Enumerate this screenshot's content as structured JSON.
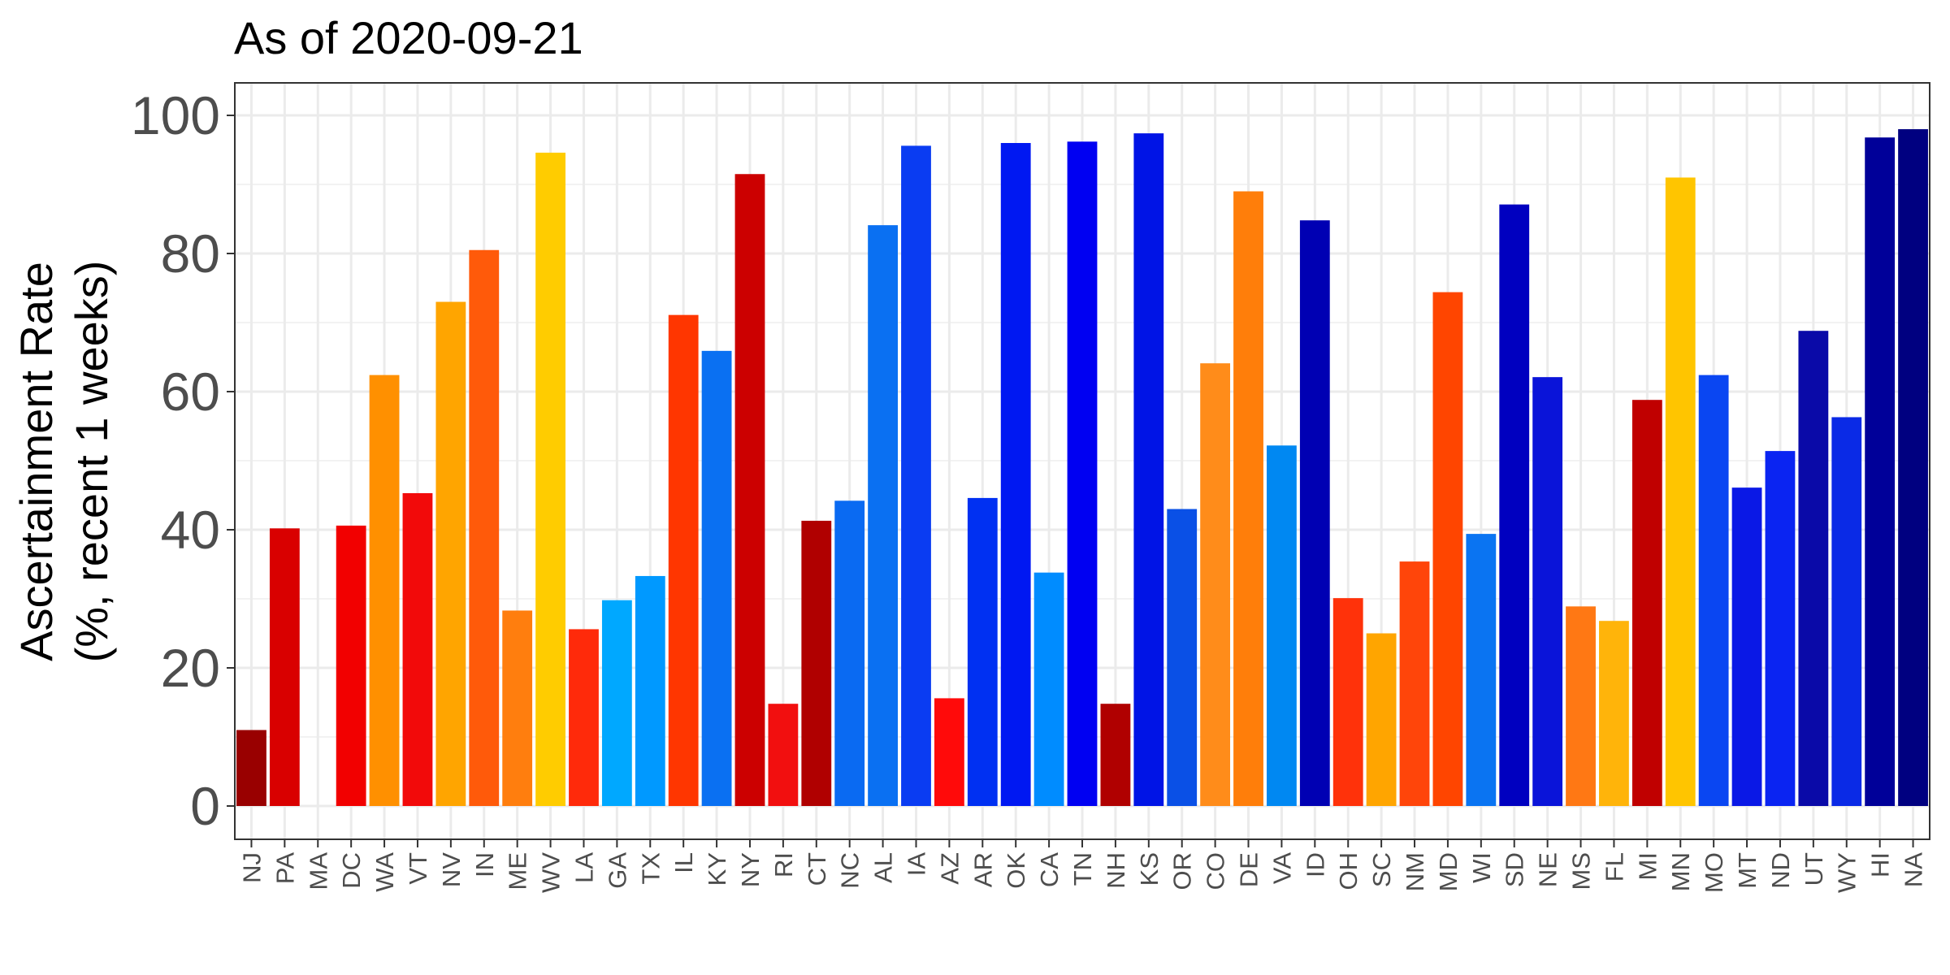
{
  "chart_data": {
    "type": "bar",
    "title": "As of 2020-09-21",
    "ylabel_line1": "Ascertainment Rate",
    "ylabel_line2": "(%, recent 1 weeks)",
    "xlabel": "",
    "ylim": [
      -5,
      104
    ],
    "yticks": [
      0,
      20,
      40,
      60,
      80,
      100
    ],
    "grid": true,
    "categories": [
      "NJ",
      "PA",
      "MA",
      "DC",
      "WA",
      "VT",
      "NV",
      "IN",
      "ME",
      "WV",
      "LA",
      "GA",
      "TX",
      "IL",
      "KY",
      "NY",
      "RI",
      "CT",
      "NC",
      "AL",
      "IA",
      "AZ",
      "AR",
      "OK",
      "CA",
      "TN",
      "NH",
      "KS",
      "OR",
      "CO",
      "DE",
      "VA",
      "ID",
      "OH",
      "SC",
      "NM",
      "MD",
      "WI",
      "SD",
      "NE",
      "MS",
      "FL",
      "MI",
      "MN",
      "MO",
      "MT",
      "ND",
      "UT",
      "WY",
      "HI",
      "NA"
    ],
    "values": [
      11.0,
      40.2,
      0,
      40.6,
      62.4,
      45.3,
      73.0,
      80.5,
      28.3,
      94.6,
      25.6,
      29.8,
      33.3,
      71.1,
      65.9,
      91.5,
      14.8,
      41.3,
      44.2,
      84.1,
      95.6,
      15.6,
      44.6,
      96.0,
      33.8,
      96.2,
      14.8,
      97.4,
      43.0,
      64.1,
      89.0,
      52.2,
      84.8,
      30.1,
      25.0,
      35.4,
      74.4,
      39.4,
      87.1,
      62.1,
      28.9,
      26.8,
      58.8,
      91.0,
      62.4,
      46.1,
      51.4,
      68.8,
      56.3,
      96.8,
      98.0
    ],
    "colors": [
      "#990000",
      "#D90000",
      "#D90000",
      "#F20000",
      "#FF9000",
      "#F20A0A",
      "#FFA500",
      "#FF5A0A",
      "#FF7E0E",
      "#FFCC00",
      "#FF2A0A",
      "#00A8FF",
      "#0099FF",
      "#FF3600",
      "#0A70F2",
      "#CC0000",
      "#F20F0F",
      "#B00000",
      "#0A6AF2",
      "#0A70F2",
      "#0A3CF2",
      "#FF0A0A",
      "#0030F2",
      "#0018F2",
      "#008CFF",
      "#0000F2",
      "#B00000",
      "#0014E6",
      "#0A50E6",
      "#FF8C1A",
      "#FF7E0A",
      "#0088F2",
      "#0000B3",
      "#FF320A",
      "#FFA500",
      "#FF450A",
      "#FF4500",
      "#0A74F2",
      "#0000C0",
      "#0A14D9",
      "#FF7814",
      "#FFB40A",
      "#C00000",
      "#FFC500",
      "#0A46F2",
      "#0A18E6",
      "#0A24F2",
      "#0A0AA8",
      "#0A2AE6",
      "#000099",
      "#000080"
    ]
  }
}
